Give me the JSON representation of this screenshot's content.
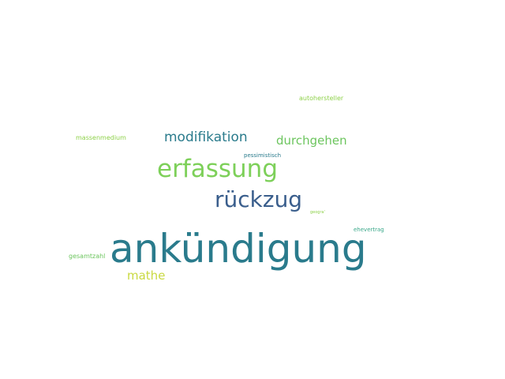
{
  "word_cloud": {
    "words": [
      {
        "key": "ankuendigung",
        "text": "ankündigung",
        "color": "#2a7b8c"
      },
      {
        "key": "erfassung",
        "text": "erfassung",
        "color": "#7dd059"
      },
      {
        "key": "rueckzug",
        "text": "rückzug",
        "color": "#3a5e8c"
      },
      {
        "key": "modifikation",
        "text": "modifikation",
        "color": "#2a7b8c"
      },
      {
        "key": "durchgehen",
        "text": "durchgehen",
        "color": "#6cc55e"
      },
      {
        "key": "mathe",
        "text": "mathe",
        "color": "#c9d940"
      },
      {
        "key": "massenmedium",
        "text": "massenmedium",
        "color": "#8ed14a"
      },
      {
        "key": "autohersteller",
        "text": "autohersteller",
        "color": "#8ed14a"
      },
      {
        "key": "pessimistisch",
        "text": "pessimistisch",
        "color": "#2a7b8c"
      },
      {
        "key": "gesamtzahl",
        "text": "gesamtzahl",
        "color": "#6cc55e"
      },
      {
        "key": "ehevertrag",
        "text": "ehevertrag",
        "color": "#3ba88a"
      },
      {
        "key": "geogra",
        "text": "geogra'",
        "color": "#8ed14a"
      }
    ]
  }
}
